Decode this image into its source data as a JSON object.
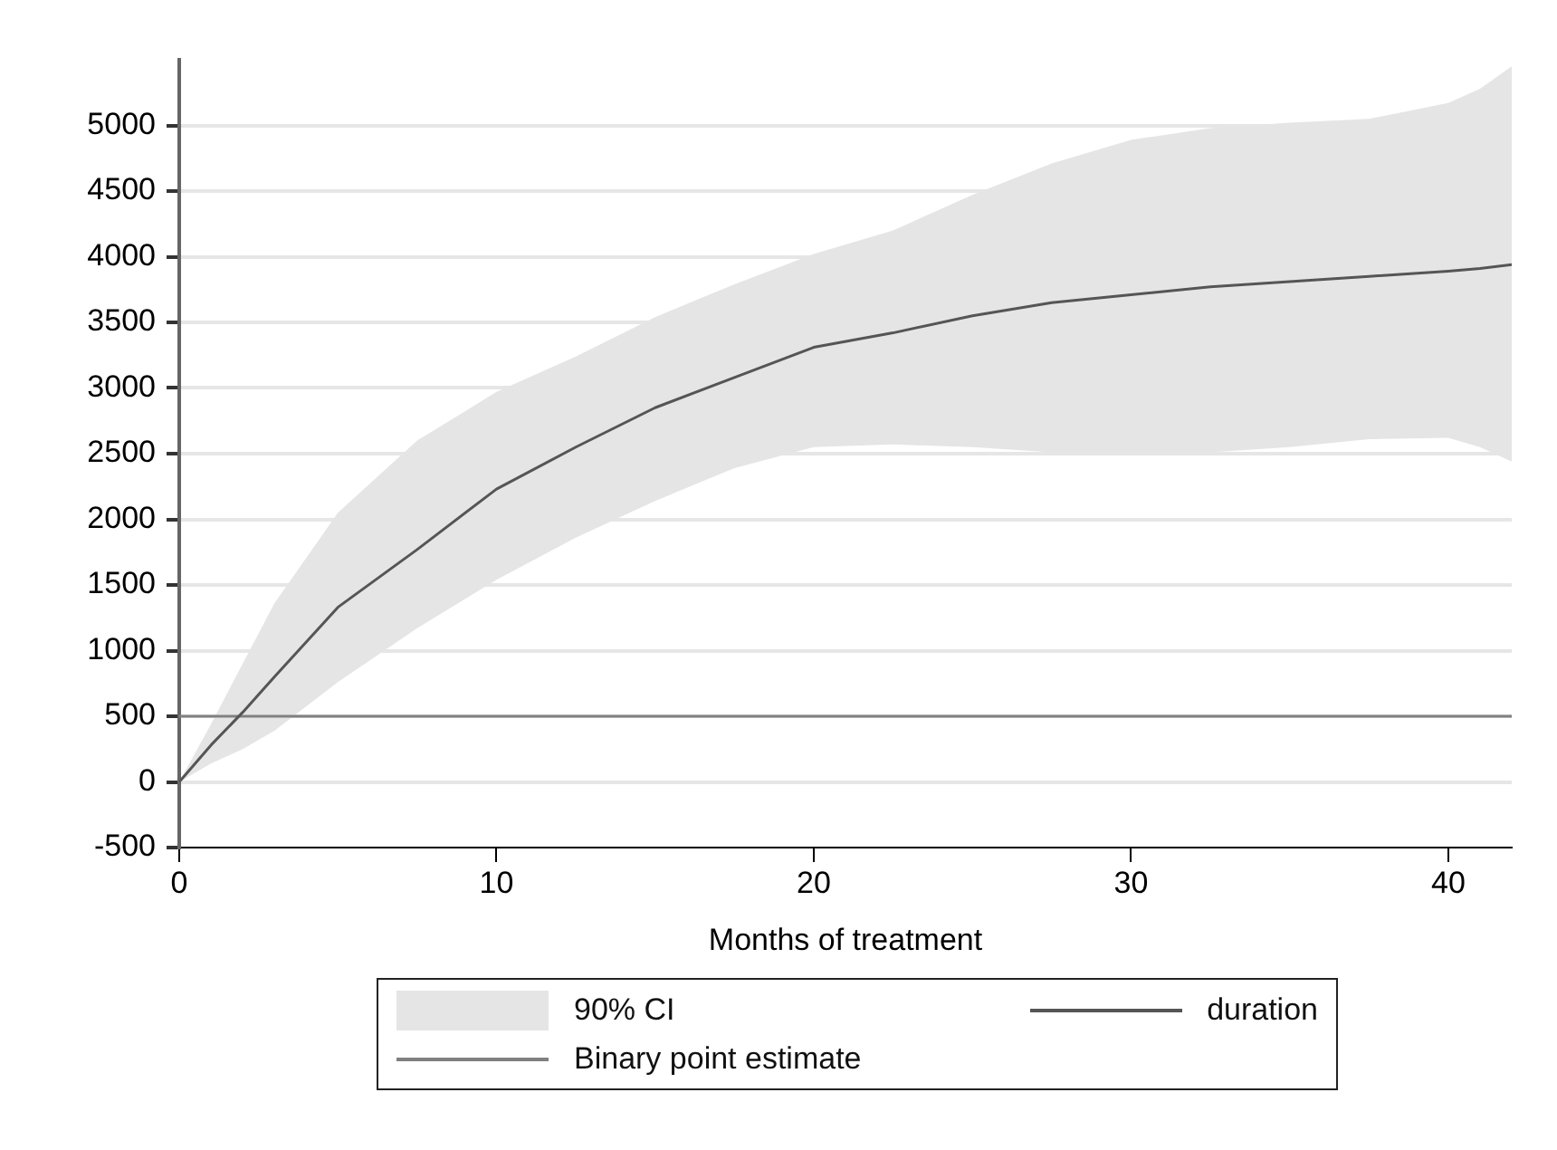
{
  "chart_data": {
    "type": "line",
    "xlabel": "Months of treatment",
    "xlim": [
      0,
      42
    ],
    "xticks": [
      0,
      10,
      20,
      30,
      40
    ],
    "ylim": [
      -500,
      5500
    ],
    "yticks": [
      -500,
      0,
      500,
      1000,
      1500,
      2000,
      2500,
      3000,
      3500,
      4000,
      4500,
      5000
    ],
    "grid": "y",
    "legend": "bottom",
    "marker": "none",
    "line_style": "solid",
    "annotations": [
      "90% CI"
    ],
    "series": [
      {
        "name": "duration",
        "color": "#555555",
        "x": [
          0,
          1,
          2,
          3,
          5,
          7.5,
          10,
          12.5,
          15,
          17.5,
          20,
          22.5,
          25,
          27.5,
          30,
          32.5,
          35,
          37.5,
          40,
          41,
          42
        ],
        "values": [
          0,
          280,
          530,
          800,
          1330,
          1770,
          2230,
          2550,
          2850,
          3080,
          3310,
          3420,
          3550,
          3650,
          3710,
          3770,
          3810,
          3850,
          3890,
          3910,
          3940
        ],
        "lower": [
          0,
          140,
          250,
          390,
          760,
          1170,
          1540,
          1860,
          2140,
          2390,
          2550,
          2570,
          2550,
          2510,
          2500,
          2510,
          2550,
          2610,
          2620,
          2550,
          2440
        ],
        "upper": [
          0,
          440,
          900,
          1360,
          2050,
          2600,
          2970,
          3240,
          3540,
          3790,
          4020,
          4200,
          4470,
          4710,
          4890,
          4980,
          5020,
          5050,
          5170,
          5280,
          5450
        ]
      },
      {
        "name": "Binary point estimate",
        "type": "line",
        "color": "#808080",
        "x": [
          0,
          42
        ],
        "values": [
          500,
          500
        ]
      }
    ]
  }
}
